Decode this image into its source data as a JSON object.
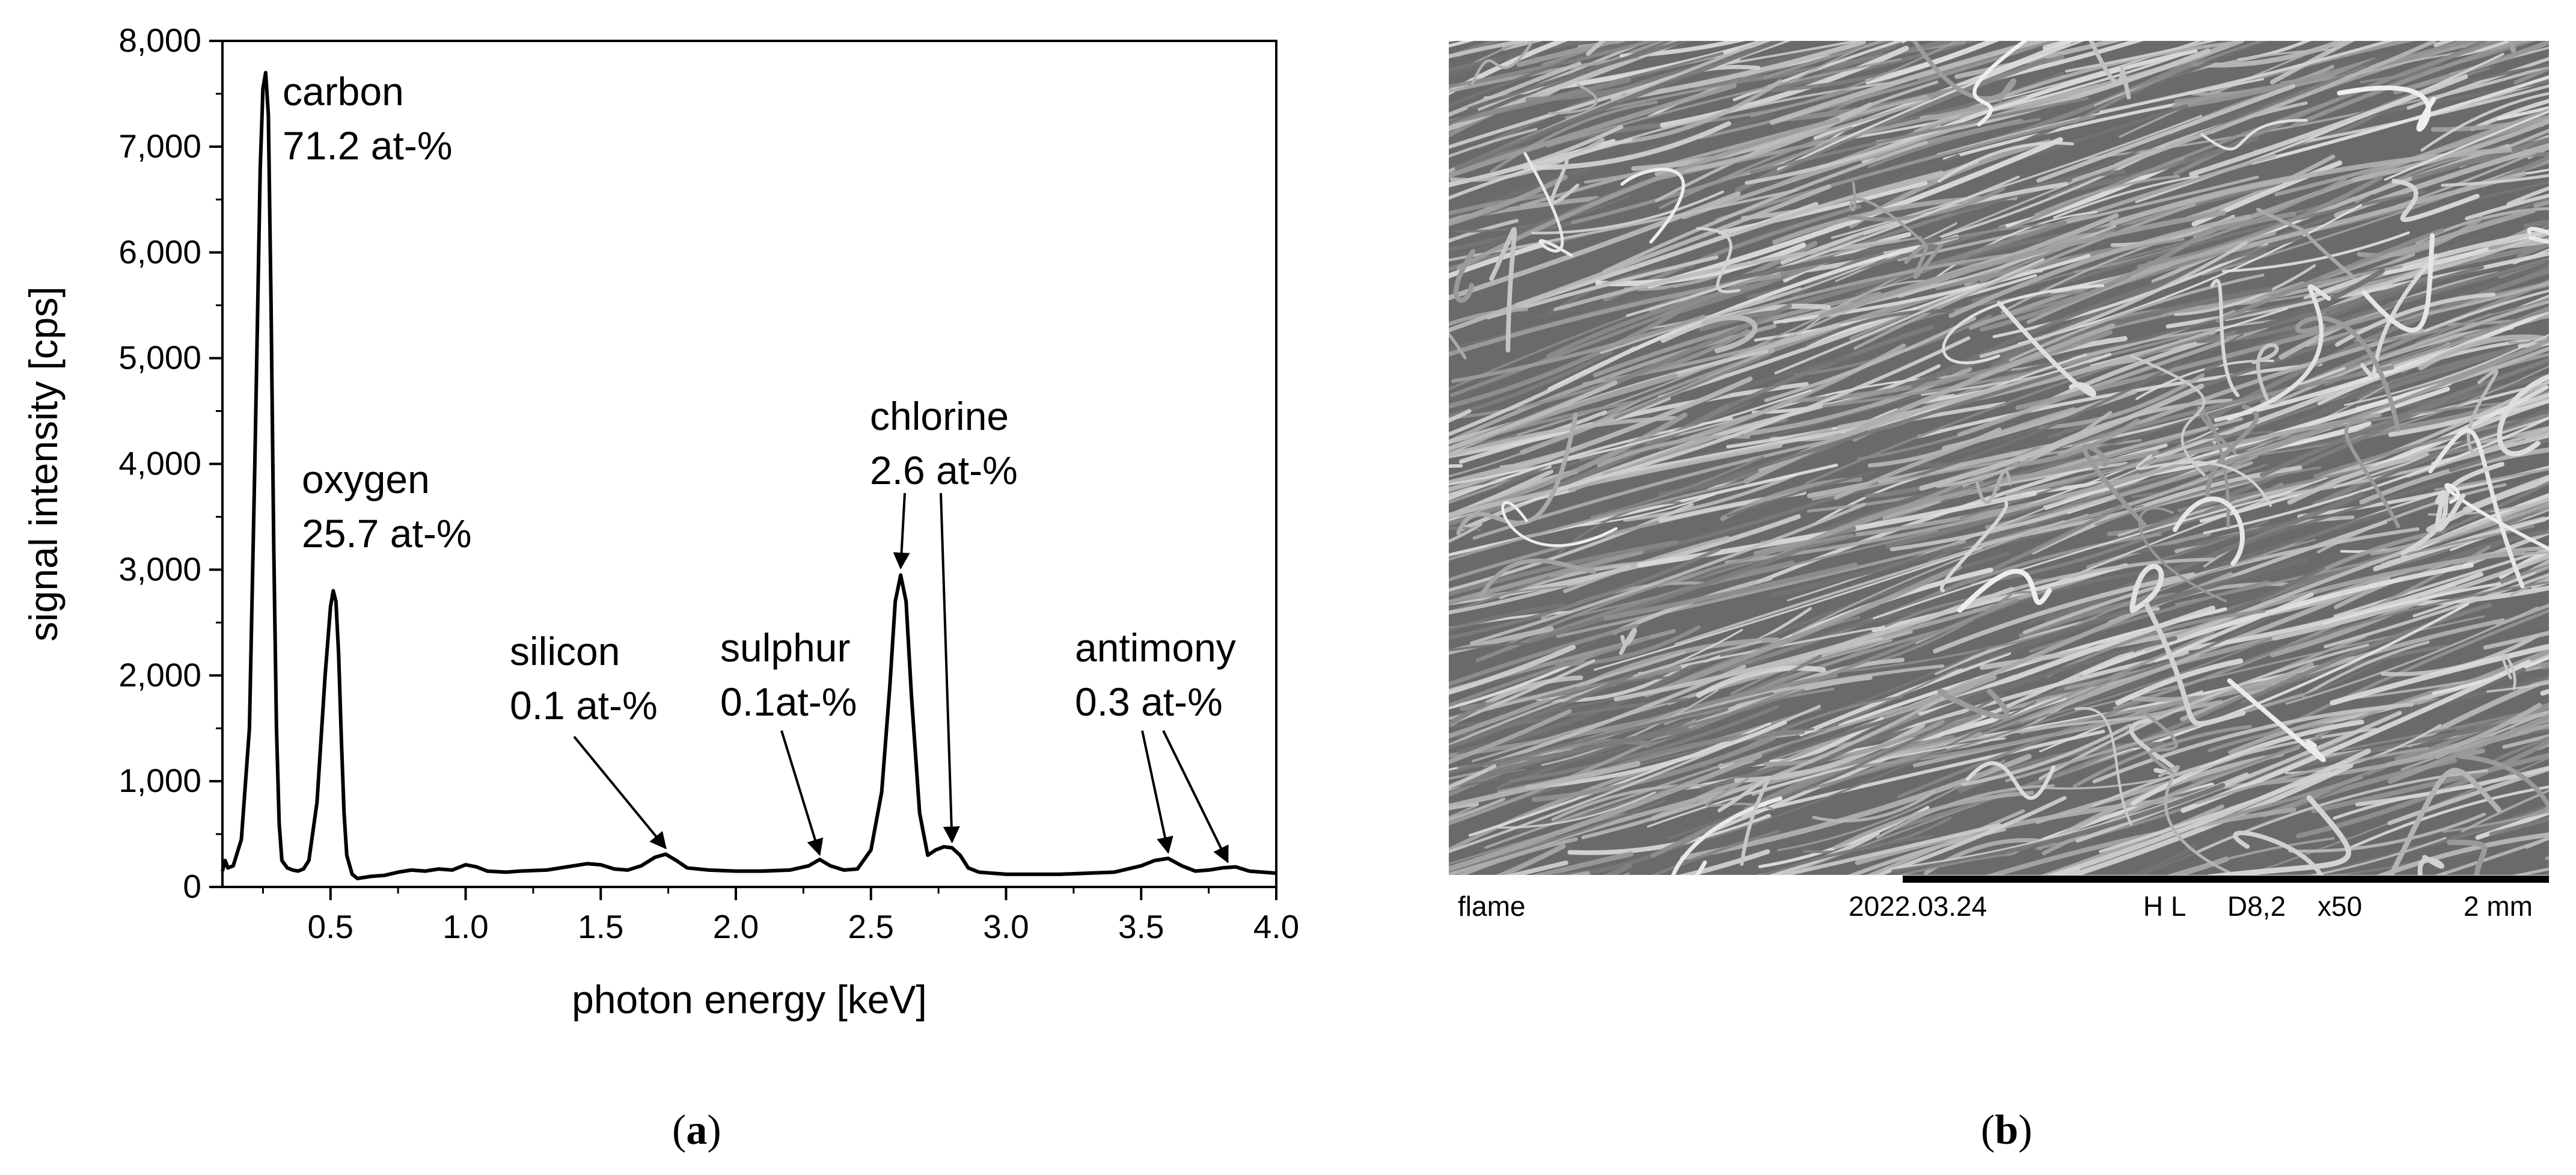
{
  "chart_data": {
    "type": "line",
    "xlabel": "photon energy [keV]",
    "ylabel": "signal intensity [cps]",
    "xlim": [
      0.1,
      4.0
    ],
    "ylim": [
      0,
      8000
    ],
    "x_ticks": [
      "0.5",
      "1.0",
      "1.5",
      "2.0",
      "2.5",
      "3.0",
      "3.5",
      "4.0"
    ],
    "y_ticks": [
      "0",
      "1,000",
      "2,000",
      "3,000",
      "4,000",
      "5,000",
      "6,000",
      "7,000",
      "8,000"
    ],
    "grid": false,
    "series": [
      {
        "x": [
          0.1,
          0.11,
          0.12,
          0.14,
          0.17,
          0.2,
          0.22,
          0.24,
          0.25,
          0.26,
          0.27,
          0.28,
          0.29,
          0.3,
          0.31,
          0.32,
          0.34,
          0.36,
          0.38,
          0.4,
          0.42,
          0.45,
          0.48,
          0.5,
          0.51,
          0.52,
          0.53,
          0.54,
          0.55,
          0.56,
          0.58,
          0.6,
          0.65,
          0.7,
          0.75,
          0.8,
          0.85,
          0.9,
          0.95,
          1.0,
          1.04,
          1.08,
          1.15,
          1.2,
          1.3,
          1.4,
          1.45,
          1.5,
          1.55,
          1.6,
          1.65,
          1.7,
          1.74,
          1.78,
          1.82,
          1.9,
          2.0,
          2.1,
          2.2,
          2.27,
          2.31,
          2.35,
          2.4,
          2.45,
          2.5,
          2.54,
          2.57,
          2.59,
          2.61,
          2.63,
          2.65,
          2.68,
          2.71,
          2.74,
          2.77,
          2.8,
          2.83,
          2.86,
          2.9,
          3.0,
          3.1,
          3.2,
          3.3,
          3.4,
          3.5,
          3.55,
          3.6,
          3.65,
          3.7,
          3.75,
          3.8,
          3.85,
          3.9,
          3.95,
          4.0
        ],
        "y": [
          150,
          250,
          180,
          200,
          450,
          1500,
          4000,
          6800,
          7550,
          7700,
          7300,
          5500,
          3200,
          1500,
          600,
          250,
          180,
          160,
          150,
          170,
          250,
          800,
          2000,
          2650,
          2800,
          2700,
          2200,
          1400,
          700,
          300,
          120,
          80,
          100,
          110,
          140,
          160,
          150,
          170,
          160,
          210,
          190,
          150,
          140,
          150,
          160,
          200,
          220,
          210,
          170,
          160,
          200,
          280,
          310,
          250,
          180,
          160,
          150,
          150,
          160,
          200,
          260,
          200,
          160,
          170,
          350,
          900,
          1900,
          2700,
          2950,
          2700,
          1800,
          700,
          300,
          350,
          380,
          370,
          300,
          180,
          140,
          120,
          120,
          120,
          130,
          140,
          200,
          250,
          270,
          200,
          150,
          160,
          180,
          190,
          150,
          140,
          130
        ]
      }
    ],
    "annotations": [
      {
        "line1": "carbon",
        "line2": "71.2 at-%"
      },
      {
        "line1": "oxygen",
        "line2": "25.7 at-%"
      },
      {
        "line1": "silicon",
        "line2": "0.1 at-%",
        "arrow_to": [
          [
            1.74,
            300
          ]
        ]
      },
      {
        "line1": "sulphur",
        "line2": "0.1at-%",
        "arrow_to": [
          [
            2.31,
            240
          ]
        ]
      },
      {
        "line1": "chlorine",
        "line2": "2.6 at-%",
        "arrow_to": [
          [
            2.61,
            2950
          ],
          [
            2.8,
            360
          ]
        ]
      },
      {
        "line1": "antimony",
        "line2": "0.3 at-%",
        "arrow_to": [
          [
            3.6,
            260
          ],
          [
            3.82,
            170
          ]
        ]
      }
    ]
  },
  "panels": {
    "a_label": "a",
    "b_label": "b"
  },
  "sem": {
    "sample": "flame",
    "date": "2022.03.24",
    "mode": "H L",
    "distance": "D8,2",
    "magnification": "x50",
    "scale": "2 mm"
  }
}
